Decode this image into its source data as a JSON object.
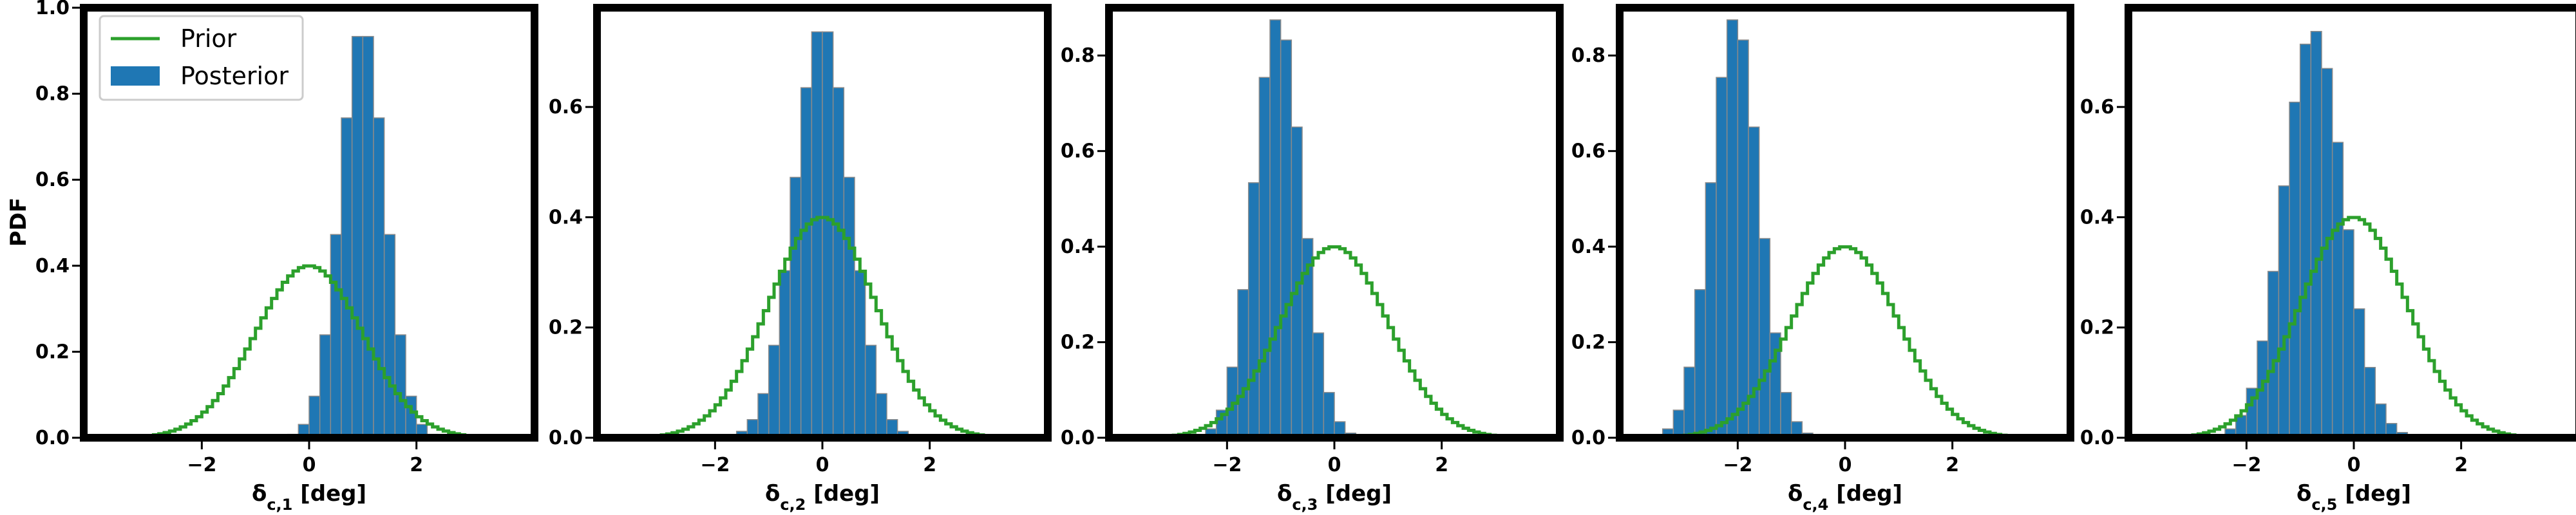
{
  "colors": {
    "prior": "#2ca02c",
    "posterior": "#1f77b4",
    "hist_edge": "#8a8a8a",
    "frame": "#000000"
  },
  "legend": {
    "prior_label": "Prior",
    "posterior_label": "Posterior"
  },
  "shared_ylabel": "PDF",
  "chart_data": [
    {
      "type": "histogram",
      "xlabel": "δ_{c,1} [deg]",
      "ylabel": "PDF",
      "xlim": [
        -4.2,
        4.2
      ],
      "ylim": [
        0,
        1.0
      ],
      "xticks": [
        -2,
        0,
        2
      ],
      "yticks": [
        0.0,
        0.2,
        0.4,
        0.6,
        0.8,
        1.0
      ],
      "ytick_labels": [
        "0.0",
        "0.2",
        "0.4",
        "0.6",
        "0.8",
        "1.0"
      ],
      "series": [
        {
          "name": "Posterior",
          "kind": "histogram",
          "mean": 1.0,
          "std": 0.42,
          "peak": 0.96
        },
        {
          "name": "Prior",
          "kind": "line",
          "mean": 0.0,
          "std": 1.0,
          "peak": 0.4
        }
      ]
    },
    {
      "type": "histogram",
      "xlabel": "δ_{c,2} [deg]",
      "ylabel": "",
      "xlim": [
        -4.2,
        4.2
      ],
      "ylim": [
        0,
        0.78
      ],
      "xticks": [
        -2,
        0,
        2
      ],
      "yticks": [
        0.0,
        0.2,
        0.4,
        0.6
      ],
      "ytick_labels": [
        "0.0",
        "0.2",
        "0.4",
        "0.6"
      ],
      "series": [
        {
          "name": "Posterior",
          "kind": "histogram",
          "mean": 0.0,
          "std": 0.52,
          "peak": 0.75
        },
        {
          "name": "Prior",
          "kind": "line",
          "mean": 0.0,
          "std": 1.0,
          "peak": 0.4
        }
      ]
    },
    {
      "type": "histogram",
      "xlabel": "δ_{c,3} [deg]",
      "ylabel": "",
      "xlim": [
        -4.2,
        4.2
      ],
      "ylim": [
        0,
        0.9
      ],
      "xticks": [
        -2,
        0,
        2
      ],
      "yticks": [
        0.0,
        0.2,
        0.4,
        0.6,
        0.8
      ],
      "ytick_labels": [
        "0.0",
        "0.2",
        "0.4",
        "0.6",
        "0.8"
      ],
      "series": [
        {
          "name": "Posterior",
          "kind": "histogram",
          "mean": -1.05,
          "std": 0.45,
          "peak": 0.88
        },
        {
          "name": "Prior",
          "kind": "line",
          "mean": 0.0,
          "std": 1.0,
          "peak": 0.4
        }
      ]
    },
    {
      "type": "histogram",
      "xlabel": "δ_{c,4} [deg]",
      "ylabel": "",
      "xlim": [
        -4.2,
        4.2
      ],
      "ylim": [
        0,
        0.9
      ],
      "xticks": [
        -2,
        0,
        2
      ],
      "yticks": [
        0.0,
        0.2,
        0.4,
        0.6,
        0.8
      ],
      "ytick_labels": [
        "0.0",
        "0.2",
        "0.4",
        "0.6",
        "0.8"
      ],
      "series": [
        {
          "name": "Posterior",
          "kind": "histogram",
          "mean": -2.05,
          "std": 0.45,
          "peak": 0.88
        },
        {
          "name": "Prior",
          "kind": "line",
          "mean": 0.0,
          "std": 1.0,
          "peak": 0.4
        }
      ]
    },
    {
      "type": "histogram",
      "xlabel": "δ_{c,5} [deg]",
      "ylabel": "",
      "xlim": [
        -4.2,
        4.2
      ],
      "ylim": [
        0,
        0.78
      ],
      "xticks": [
        -2,
        0,
        2
      ],
      "yticks": [
        0.0,
        0.2,
        0.4,
        0.6
      ],
      "ytick_labels": [
        "0.0",
        "0.2",
        "0.4",
        "0.6"
      ],
      "series": [
        {
          "name": "Posterior",
          "kind": "histogram",
          "mean": -0.75,
          "std": 0.56,
          "peak": 0.74
        },
        {
          "name": "Prior",
          "kind": "line",
          "mean": 0.0,
          "std": 1.0,
          "peak": 0.4
        }
      ]
    }
  ]
}
